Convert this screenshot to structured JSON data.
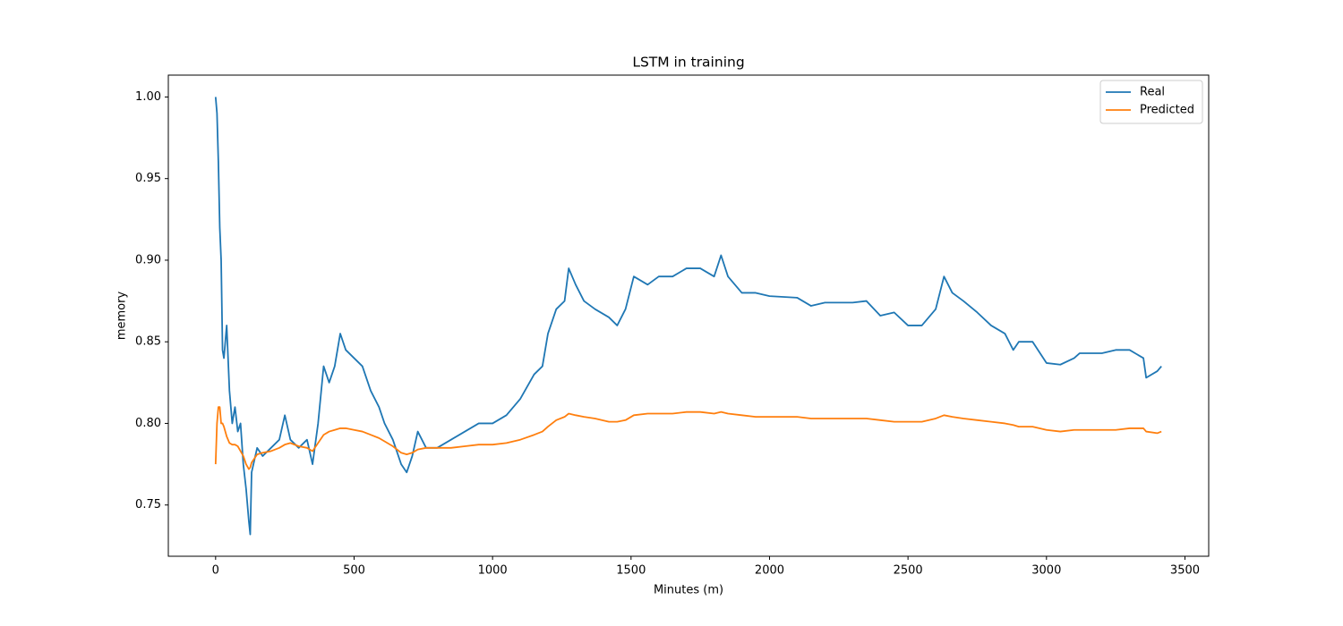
{
  "chart_data": {
    "type": "line",
    "title": "LSTM in training",
    "x_label": "Minutes (m)",
    "y_label": "memory",
    "x": [
      0,
      5,
      10,
      15,
      20,
      25,
      30,
      40,
      50,
      60,
      70,
      80,
      90,
      100,
      110,
      120,
      125,
      130,
      150,
      170,
      200,
      230,
      250,
      270,
      300,
      330,
      350,
      370,
      390,
      410,
      430,
      450,
      470,
      500,
      530,
      560,
      590,
      610,
      640,
      670,
      690,
      710,
      730,
      760,
      800,
      850,
      900,
      950,
      1000,
      1050,
      1100,
      1150,
      1180,
      1200,
      1230,
      1260,
      1275,
      1300,
      1330,
      1370,
      1420,
      1450,
      1480,
      1510,
      1560,
      1600,
      1650,
      1700,
      1750,
      1800,
      1825,
      1850,
      1900,
      1950,
      2000,
      2100,
      2150,
      2200,
      2300,
      2350,
      2400,
      2450,
      2500,
      2550,
      2600,
      2630,
      2660,
      2700,
      2750,
      2800,
      2850,
      2880,
      2900,
      2950,
      3000,
      3050,
      3100,
      3120,
      3200,
      3250,
      3300,
      3350,
      3360,
      3400,
      3415
    ],
    "series": [
      {
        "name": "Real",
        "color": "#1f77b4",
        "values": [
          1.0,
          0.99,
          0.96,
          0.92,
          0.9,
          0.845,
          0.84,
          0.86,
          0.82,
          0.8,
          0.81,
          0.795,
          0.8,
          0.775,
          0.76,
          0.74,
          0.732,
          0.77,
          0.785,
          0.78,
          0.785,
          0.79,
          0.805,
          0.79,
          0.785,
          0.79,
          0.775,
          0.8,
          0.835,
          0.825,
          0.835,
          0.855,
          0.845,
          0.84,
          0.835,
          0.82,
          0.81,
          0.8,
          0.79,
          0.775,
          0.77,
          0.78,
          0.795,
          0.785,
          0.785,
          0.79,
          0.795,
          0.8,
          0.8,
          0.805,
          0.815,
          0.83,
          0.835,
          0.855,
          0.87,
          0.875,
          0.895,
          0.885,
          0.875,
          0.87,
          0.865,
          0.86,
          0.87,
          0.89,
          0.885,
          0.89,
          0.89,
          0.895,
          0.895,
          0.89,
          0.903,
          0.89,
          0.88,
          0.88,
          0.878,
          0.877,
          0.872,
          0.874,
          0.874,
          0.875,
          0.866,
          0.868,
          0.86,
          0.86,
          0.87,
          0.89,
          0.88,
          0.875,
          0.868,
          0.86,
          0.855,
          0.845,
          0.85,
          0.85,
          0.837,
          0.836,
          0.84,
          0.843,
          0.843,
          0.845,
          0.845,
          0.84,
          0.828,
          0.832,
          0.835
        ]
      },
      {
        "name": "Predicted",
        "color": "#ff7f0e",
        "values": [
          0.775,
          0.8,
          0.81,
          0.81,
          0.8,
          0.8,
          0.798,
          0.792,
          0.788,
          0.787,
          0.787,
          0.786,
          0.783,
          0.78,
          0.775,
          0.772,
          0.773,
          0.776,
          0.781,
          0.782,
          0.783,
          0.785,
          0.787,
          0.788,
          0.786,
          0.785,
          0.783,
          0.788,
          0.793,
          0.795,
          0.796,
          0.797,
          0.797,
          0.796,
          0.795,
          0.793,
          0.791,
          0.789,
          0.786,
          0.782,
          0.781,
          0.782,
          0.784,
          0.785,
          0.785,
          0.785,
          0.786,
          0.787,
          0.787,
          0.788,
          0.79,
          0.793,
          0.795,
          0.798,
          0.802,
          0.804,
          0.806,
          0.805,
          0.804,
          0.803,
          0.801,
          0.801,
          0.802,
          0.805,
          0.806,
          0.806,
          0.806,
          0.807,
          0.807,
          0.806,
          0.807,
          0.806,
          0.805,
          0.804,
          0.804,
          0.804,
          0.803,
          0.803,
          0.803,
          0.803,
          0.802,
          0.801,
          0.801,
          0.801,
          0.803,
          0.805,
          0.804,
          0.803,
          0.802,
          0.801,
          0.8,
          0.799,
          0.798,
          0.798,
          0.796,
          0.795,
          0.796,
          0.796,
          0.796,
          0.796,
          0.797,
          0.797,
          0.795,
          0.794,
          0.795
        ]
      }
    ],
    "xlim": [
      -170.75,
      3585.75
    ],
    "xticks": [
      0,
      500,
      1000,
      1500,
      2000,
      2500,
      3000,
      3500
    ],
    "ylim": [
      0.7186,
      1.0134
    ],
    "yticks": [
      0.75,
      {
        "value": 0.8,
        "label": "0.80"
      },
      0.85,
      {
        "value": 0.9,
        "label": "0.90"
      },
      0.95,
      {
        "value": 1.0,
        "label": "1.00"
      }
    ],
    "grid": false,
    "legend": "upper right"
  }
}
